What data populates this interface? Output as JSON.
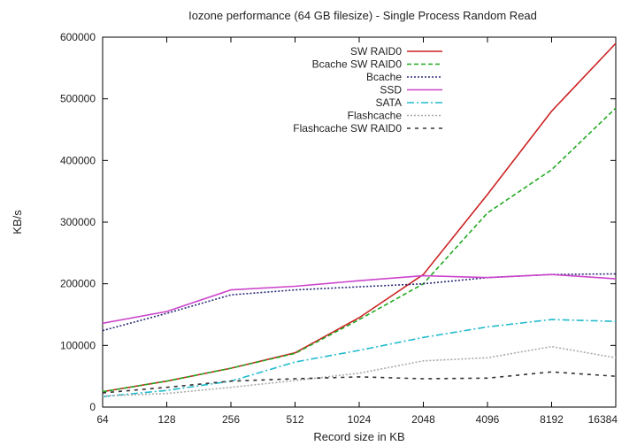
{
  "chart_data": {
    "type": "line",
    "title": "Iozone performance (64 GB filesize) - Single Process Random Read",
    "xlabel": "Record size in KB",
    "ylabel": "KB/s",
    "x_scale": "log2",
    "categories": [
      "64",
      "128",
      "256",
      "512",
      "1024",
      "2048",
      "4096",
      "8192",
      "16384"
    ],
    "ylim": [
      0,
      600000
    ],
    "yticks": [
      "0",
      "100000",
      "200000",
      "300000",
      "400000",
      "500000",
      "600000"
    ],
    "grid": false,
    "legend_position": "top-right",
    "series": [
      {
        "name": "SW RAID0",
        "color": "#cc2222",
        "dash": "solid",
        "values": [
          25000,
          42000,
          63000,
          88000,
          145000,
          215000,
          345000,
          480000,
          590000
        ]
      },
      {
        "name": "Bcache SW RAID0",
        "color": "#22aa22",
        "dash": "dash",
        "values": [
          25000,
          42000,
          63000,
          87000,
          142000,
          200000,
          315000,
          385000,
          485000
        ]
      },
      {
        "name": "Bcache",
        "color": "#2a2a7a",
        "dash": "dot",
        "values": [
          124000,
          152000,
          182000,
          190000,
          195000,
          200000,
          210000,
          215000,
          216000
        ]
      },
      {
        "name": "SSD",
        "color": "#cc44cc",
        "dash": "solid",
        "values": [
          136000,
          155000,
          190000,
          196000,
          205000,
          213000,
          210000,
          215000,
          208000
        ]
      },
      {
        "name": "SATA",
        "color": "#22bbcc",
        "dash": "dashdot",
        "values": [
          17000,
          27000,
          42000,
          73000,
          92000,
          113000,
          130000,
          142000,
          139000
        ]
      },
      {
        "name": "Flashcache",
        "color": "#aaaaaa",
        "dash": "dot",
        "values": [
          18000,
          22000,
          32000,
          43000,
          55000,
          75000,
          80000,
          98000,
          80000
        ]
      },
      {
        "name": "Flashcache SW RAID0",
        "color": "#333333",
        "dash": "wide",
        "values": [
          23000,
          32000,
          42000,
          46000,
          49000,
          46000,
          47000,
          57000,
          50000
        ]
      }
    ]
  }
}
